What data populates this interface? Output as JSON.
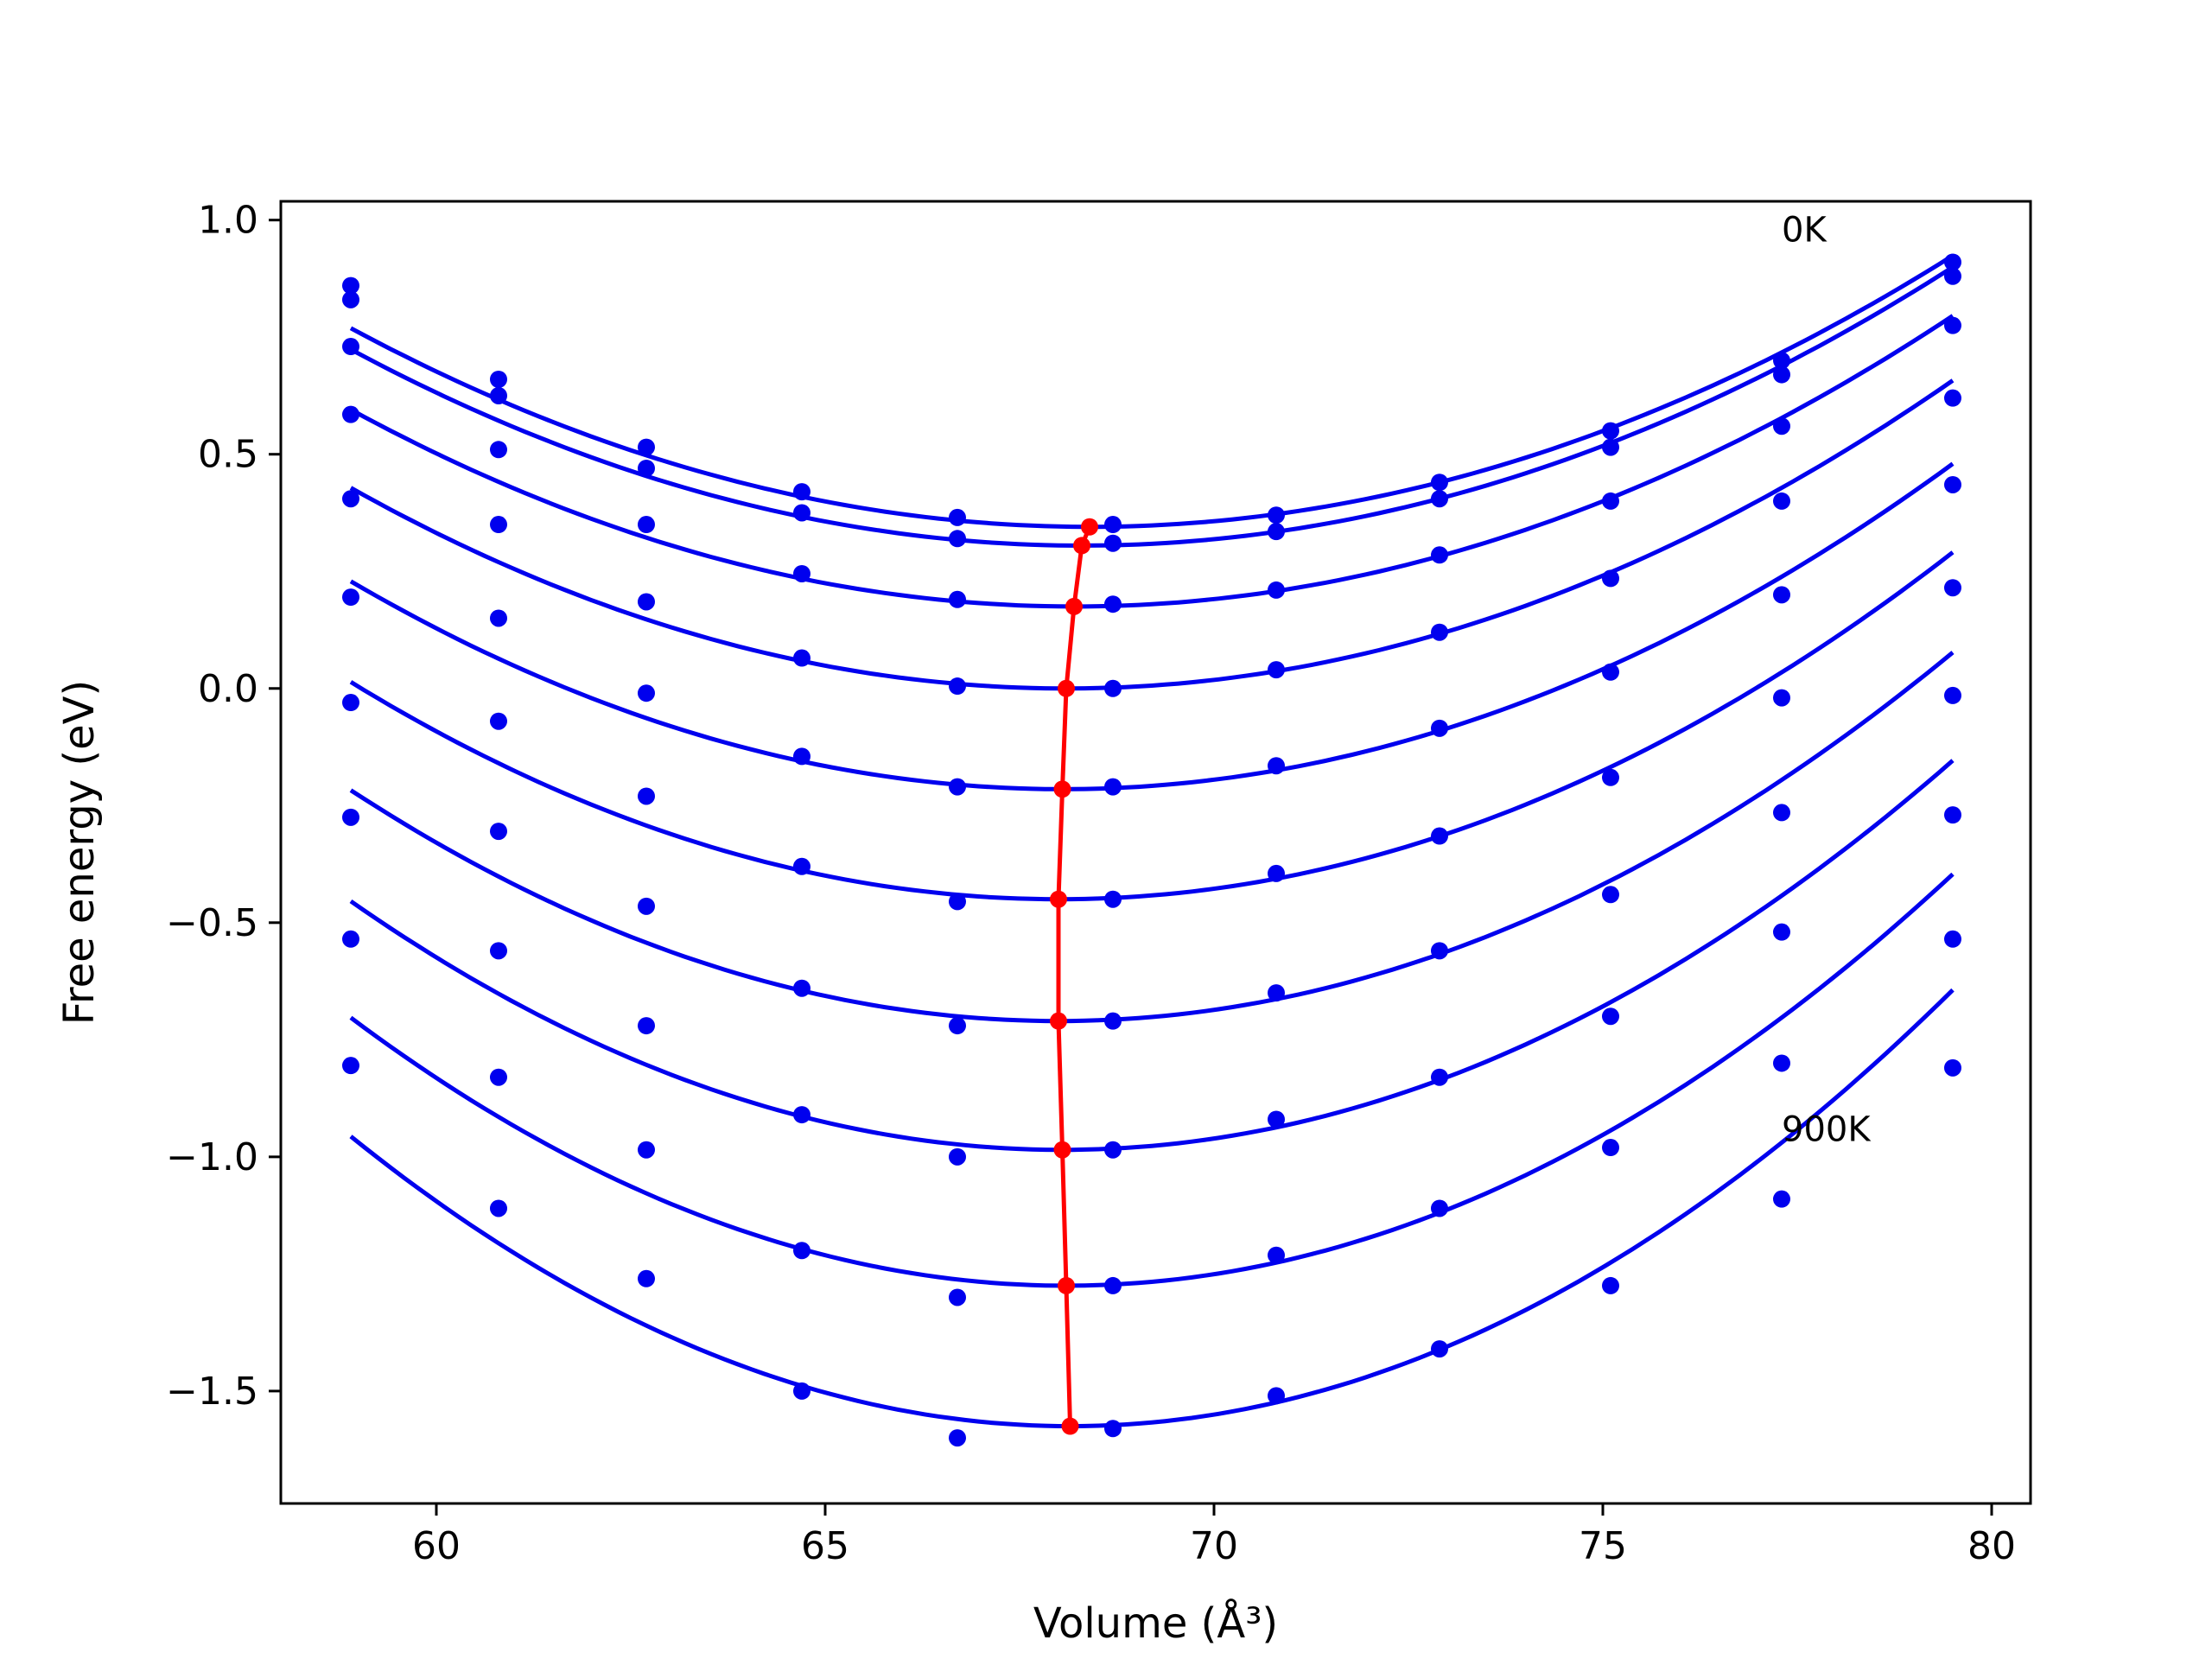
{
  "chart_data": {
    "type": "scatter",
    "xlabel": "Volume (Å³)",
    "ylabel": "Free energy (eV)",
    "xlim": [
      58.0,
      80.5
    ],
    "ylim": [
      -1.74,
      1.04
    ],
    "xticks": [
      60,
      65,
      70,
      75,
      80
    ],
    "xtick_labels": [
      "60",
      "65",
      "70",
      "75",
      "80"
    ],
    "yticks": [
      -1.5,
      -1.0,
      -0.5,
      0.0,
      0.5,
      1.0
    ],
    "ytick_labels": [
      "−1.5",
      "−1.0",
      "−0.5",
      "0.0",
      "0.5",
      "1.0"
    ],
    "grid": false,
    "annotations": [
      {
        "text": "0K",
        "x": 77.3,
        "y": 0.98
      },
      {
        "text": "900K",
        "x": 77.3,
        "y": -0.94
      }
    ],
    "volumes": [
      58.9,
      60.8,
      62.7,
      64.7,
      66.7,
      68.7,
      70.8,
      72.9,
      75.1,
      77.3,
      79.5
    ],
    "series": [
      {
        "values": [
          0.86,
          0.66,
          0.515,
          0.42,
          0.365,
          0.35,
          0.37,
          0.44,
          0.55,
          0.7,
          0.91
        ]
      },
      {
        "values": [
          0.83,
          0.625,
          0.47,
          0.375,
          0.32,
          0.31,
          0.335,
          0.405,
          0.515,
          0.67,
          0.88
        ]
      },
      {
        "values": [
          0.73,
          0.51,
          0.35,
          0.245,
          0.19,
          0.18,
          0.21,
          0.285,
          0.4,
          0.56,
          0.775
        ]
      },
      {
        "values": [
          0.585,
          0.35,
          0.185,
          0.065,
          0.005,
          0.0,
          0.04,
          0.12,
          0.235,
          0.4,
          0.62
        ]
      },
      {
        "values": [
          0.405,
          0.15,
          -0.01,
          -0.145,
          -0.21,
          -0.21,
          -0.165,
          -0.085,
          0.035,
          0.2,
          0.435
        ]
      },
      {
        "values": [
          0.195,
          -0.07,
          -0.23,
          -0.38,
          -0.455,
          -0.45,
          -0.395,
          -0.315,
          -0.19,
          -0.02,
          0.215
        ]
      },
      {
        "values": [
          -0.03,
          -0.305,
          -0.465,
          -0.64,
          -0.72,
          -0.71,
          -0.65,
          -0.56,
          -0.44,
          -0.265,
          -0.015
        ]
      },
      {
        "values": [
          -0.275,
          -0.56,
          -0.72,
          -0.91,
          -1.0,
          -0.985,
          -0.92,
          -0.83,
          -0.7,
          -0.52,
          -0.27
        ]
      },
      {
        "values": [
          -0.535,
          -0.83,
          -0.985,
          -1.2,
          -1.3,
          -1.275,
          -1.21,
          -1.11,
          -0.98,
          -0.8,
          -0.535
        ]
      },
      {
        "values": [
          -0.805,
          -1.11,
          -1.26,
          -1.5,
          -1.6,
          -1.58,
          -1.51,
          -1.41,
          -1.275,
          -1.09,
          -0.81
        ]
      }
    ],
    "fits": [
      {
        "a": 0.0047,
        "v0": 68.4,
        "fmin": 0.345
      },
      {
        "a": 0.00474,
        "v0": 68.3,
        "fmin": 0.305
      },
      {
        "a": 0.00486,
        "v0": 68.2,
        "fmin": 0.175
      },
      {
        "a": 0.00506,
        "v0": 68.1,
        "fmin": 0.0
      },
      {
        "a": 0.0053,
        "v0": 68.05,
        "fmin": -0.215
      },
      {
        "a": 0.0056,
        "v0": 68.0,
        "fmin": -0.45
      },
      {
        "a": 0.00595,
        "v0": 68.0,
        "fmin": -0.71
      },
      {
        "a": 0.00634,
        "v0": 68.05,
        "fmin": -0.985
      },
      {
        "a": 0.00676,
        "v0": 68.1,
        "fmin": -1.275
      },
      {
        "a": 0.00723,
        "v0": 68.15,
        "fmin": -1.575
      }
    ],
    "minima_path": {
      "x": [
        68.4,
        68.3,
        68.2,
        68.1,
        68.05,
        68.0,
        68.0,
        68.05,
        68.1,
        68.15
      ],
      "y": [
        0.345,
        0.305,
        0.175,
        0.0,
        -0.215,
        -0.45,
        -0.71,
        -0.985,
        -1.275,
        -1.575
      ]
    },
    "colors": {
      "series": "#0000ee",
      "minima": "#ff0000",
      "axes": "#000000"
    }
  }
}
